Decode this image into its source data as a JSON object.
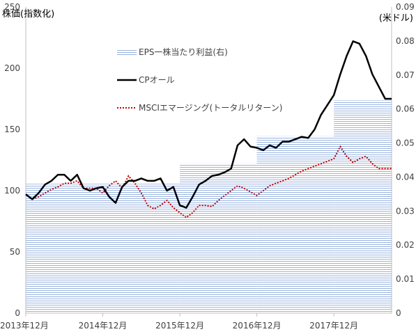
{
  "chart_data": {
    "type": "line",
    "left_axis_title": "株価(指数化)",
    "right_axis_title": "(米ドル)",
    "x_ticks": [
      "2013年12月",
      "2014年12月",
      "2015年12月",
      "2016年12月",
      "2017年12月"
    ],
    "left_ticks": [
      "0",
      "50",
      "100",
      "150",
      "200",
      "250"
    ],
    "right_ticks": [
      "0",
      "0.01",
      "0.02",
      "0.03",
      "0.04",
      "0.05",
      "0.06",
      "0.07",
      "0.08",
      "0.09"
    ],
    "ylim_left": [
      0,
      250
    ],
    "ylim_right": [
      0,
      0.09
    ],
    "xlim": [
      "2013-12",
      "2018-09"
    ],
    "grid": false,
    "legend_placement": "top-center",
    "colors": {
      "eps_fill": "#b4c7e7",
      "cp_line": "#000000",
      "msci_line": "#c00000",
      "axis": "#bfbfbf",
      "text": "#404040"
    },
    "series": [
      {
        "name": "EPS一株当たり利益(右)",
        "kind": "step-area",
        "axis": "right",
        "steps": [
          {
            "from": "2013-12",
            "to": "2015-12",
            "value": 0.038
          },
          {
            "from": "2015-12",
            "to": "2016-12",
            "value": 0.044
          },
          {
            "from": "2016-12",
            "to": "2017-12",
            "value": 0.052
          },
          {
            "from": "2017-12",
            "to": "2018-09",
            "value": 0.0625
          }
        ]
      },
      {
        "name": "CPオール",
        "kind": "line",
        "axis": "left",
        "x": [
          "2013-12",
          "2014-01",
          "2014-02",
          "2014-03",
          "2014-04",
          "2014-05",
          "2014-06",
          "2014-07",
          "2014-08",
          "2014-09",
          "2014-10",
          "2014-11",
          "2014-12",
          "2015-01",
          "2015-02",
          "2015-03",
          "2015-04",
          "2015-05",
          "2015-06",
          "2015-07",
          "2015-08",
          "2015-09",
          "2015-10",
          "2015-11",
          "2015-12",
          "2016-01",
          "2016-02",
          "2016-03",
          "2016-04",
          "2016-05",
          "2016-06",
          "2016-07",
          "2016-08",
          "2016-09",
          "2016-10",
          "2016-11",
          "2016-12",
          "2017-01",
          "2017-02",
          "2017-03",
          "2017-04",
          "2017-05",
          "2017-06",
          "2017-07",
          "2017-08",
          "2017-09",
          "2017-10",
          "2017-11",
          "2017-12",
          "2018-01",
          "2018-02",
          "2018-03",
          "2018-04",
          "2018-05",
          "2018-06",
          "2018-07",
          "2018-08",
          "2018-09"
        ],
        "values": [
          97,
          93,
          98,
          105,
          108,
          113,
          113,
          108,
          113,
          102,
          100,
          102,
          103,
          95,
          90,
          103,
          108,
          108,
          110,
          108,
          108,
          110,
          100,
          103,
          88,
          86,
          95,
          105,
          108,
          112,
          113,
          115,
          118,
          137,
          142,
          136,
          135,
          133,
          137,
          135,
          140,
          140,
          142,
          144,
          143,
          150,
          162,
          170,
          178,
          195,
          210,
          222,
          220,
          210,
          195,
          185,
          175,
          175
        ]
      },
      {
        "name": "MSCIエマージング(トータルリターン)",
        "kind": "dotted-line",
        "axis": "left",
        "x": [
          "2013-12",
          "2014-01",
          "2014-02",
          "2014-03",
          "2014-04",
          "2014-05",
          "2014-06",
          "2014-07",
          "2014-08",
          "2014-09",
          "2014-10",
          "2014-11",
          "2014-12",
          "2015-01",
          "2015-02",
          "2015-03",
          "2015-04",
          "2015-05",
          "2015-06",
          "2015-07",
          "2015-08",
          "2015-09",
          "2015-10",
          "2015-11",
          "2015-12",
          "2016-01",
          "2016-02",
          "2016-03",
          "2016-04",
          "2016-05",
          "2016-06",
          "2016-07",
          "2016-08",
          "2016-09",
          "2016-10",
          "2016-11",
          "2016-12",
          "2017-01",
          "2017-02",
          "2017-03",
          "2017-04",
          "2017-05",
          "2017-06",
          "2017-07",
          "2017-08",
          "2017-09",
          "2017-10",
          "2017-11",
          "2017-12",
          "2018-01",
          "2018-02",
          "2018-03",
          "2018-04",
          "2018-05",
          "2018-06",
          "2018-07",
          "2018-08",
          "2018-09"
        ],
        "values": [
          97,
          93,
          95,
          98,
          101,
          103,
          106,
          106,
          108,
          102,
          102,
          102,
          98,
          104,
          108,
          102,
          112,
          106,
          98,
          88,
          85,
          88,
          92,
          86,
          82,
          78,
          82,
          88,
          88,
          87,
          92,
          96,
          100,
          104,
          102,
          99,
          96,
          100,
          104,
          106,
          108,
          110,
          113,
          116,
          118,
          120,
          122,
          124,
          126,
          136,
          128,
          123,
          126,
          128,
          122,
          118,
          118,
          118
        ]
      }
    ]
  }
}
